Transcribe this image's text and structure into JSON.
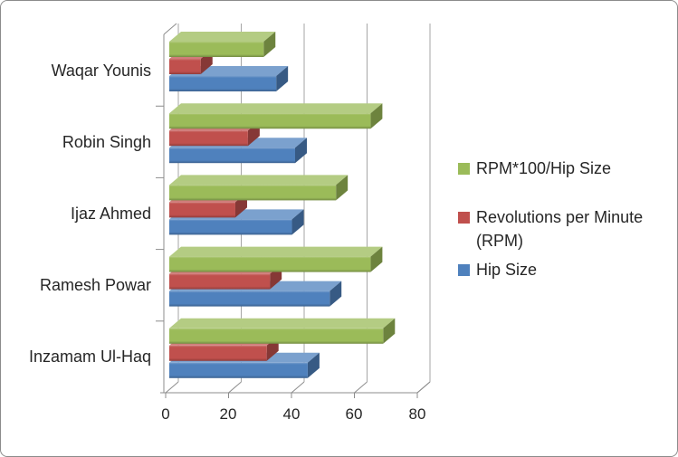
{
  "chart_data": {
    "type": "bar",
    "orientation": "horizontal",
    "style": "3d-clustered",
    "title": "",
    "xlabel": "",
    "ylabel": "",
    "categories": [
      "Waqar Younis",
      "Robin Singh",
      "Ijaz Ahmed",
      "Ramesh Powar",
      "Inzamam Ul-Haq"
    ],
    "series": [
      {
        "name": "RPM*100/Hip Size",
        "color": "#9BBB59",
        "values": [
          30,
          64,
          53,
          64,
          68
        ]
      },
      {
        "name": "Revolutions per Minute (RPM)",
        "color": "#C0504D",
        "values": [
          10,
          25,
          21,
          32,
          31
        ]
      },
      {
        "name": "Hip Size",
        "color": "#4F81BD",
        "values": [
          34,
          40,
          39,
          51,
          44
        ]
      }
    ],
    "x_ticks": [
      "0",
      "20",
      "40",
      "60",
      "80"
    ],
    "xlim": [
      0,
      80
    ],
    "grid": true,
    "legend_position": "right"
  },
  "legend": {
    "items": [
      {
        "label": "RPM*100/Hip Size",
        "color": "#9BBB59"
      },
      {
        "label": "Revolutions per Minute (RPM)",
        "color": "#C0504D"
      },
      {
        "label": "Hip Size",
        "color": "#4F81BD"
      }
    ]
  },
  "colors": {
    "background": "#FFFFFF",
    "frame_border": "#8C8C8C",
    "gridline": "#A6A6A6",
    "axis": "#8C8C8C",
    "text": "#262626"
  }
}
